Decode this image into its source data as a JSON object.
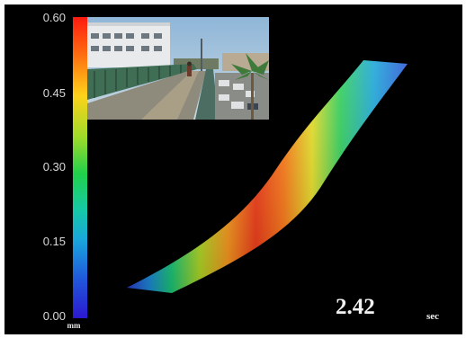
{
  "colorbar": {
    "ticks": [
      "0.60",
      "0.45",
      "0.30",
      "0.15",
      "0.00"
    ],
    "unit": "mm"
  },
  "time": {
    "value": "2.42",
    "unit": "sec"
  },
  "icons": {
    "inset_photo": "footbridge-photo-icon"
  }
}
